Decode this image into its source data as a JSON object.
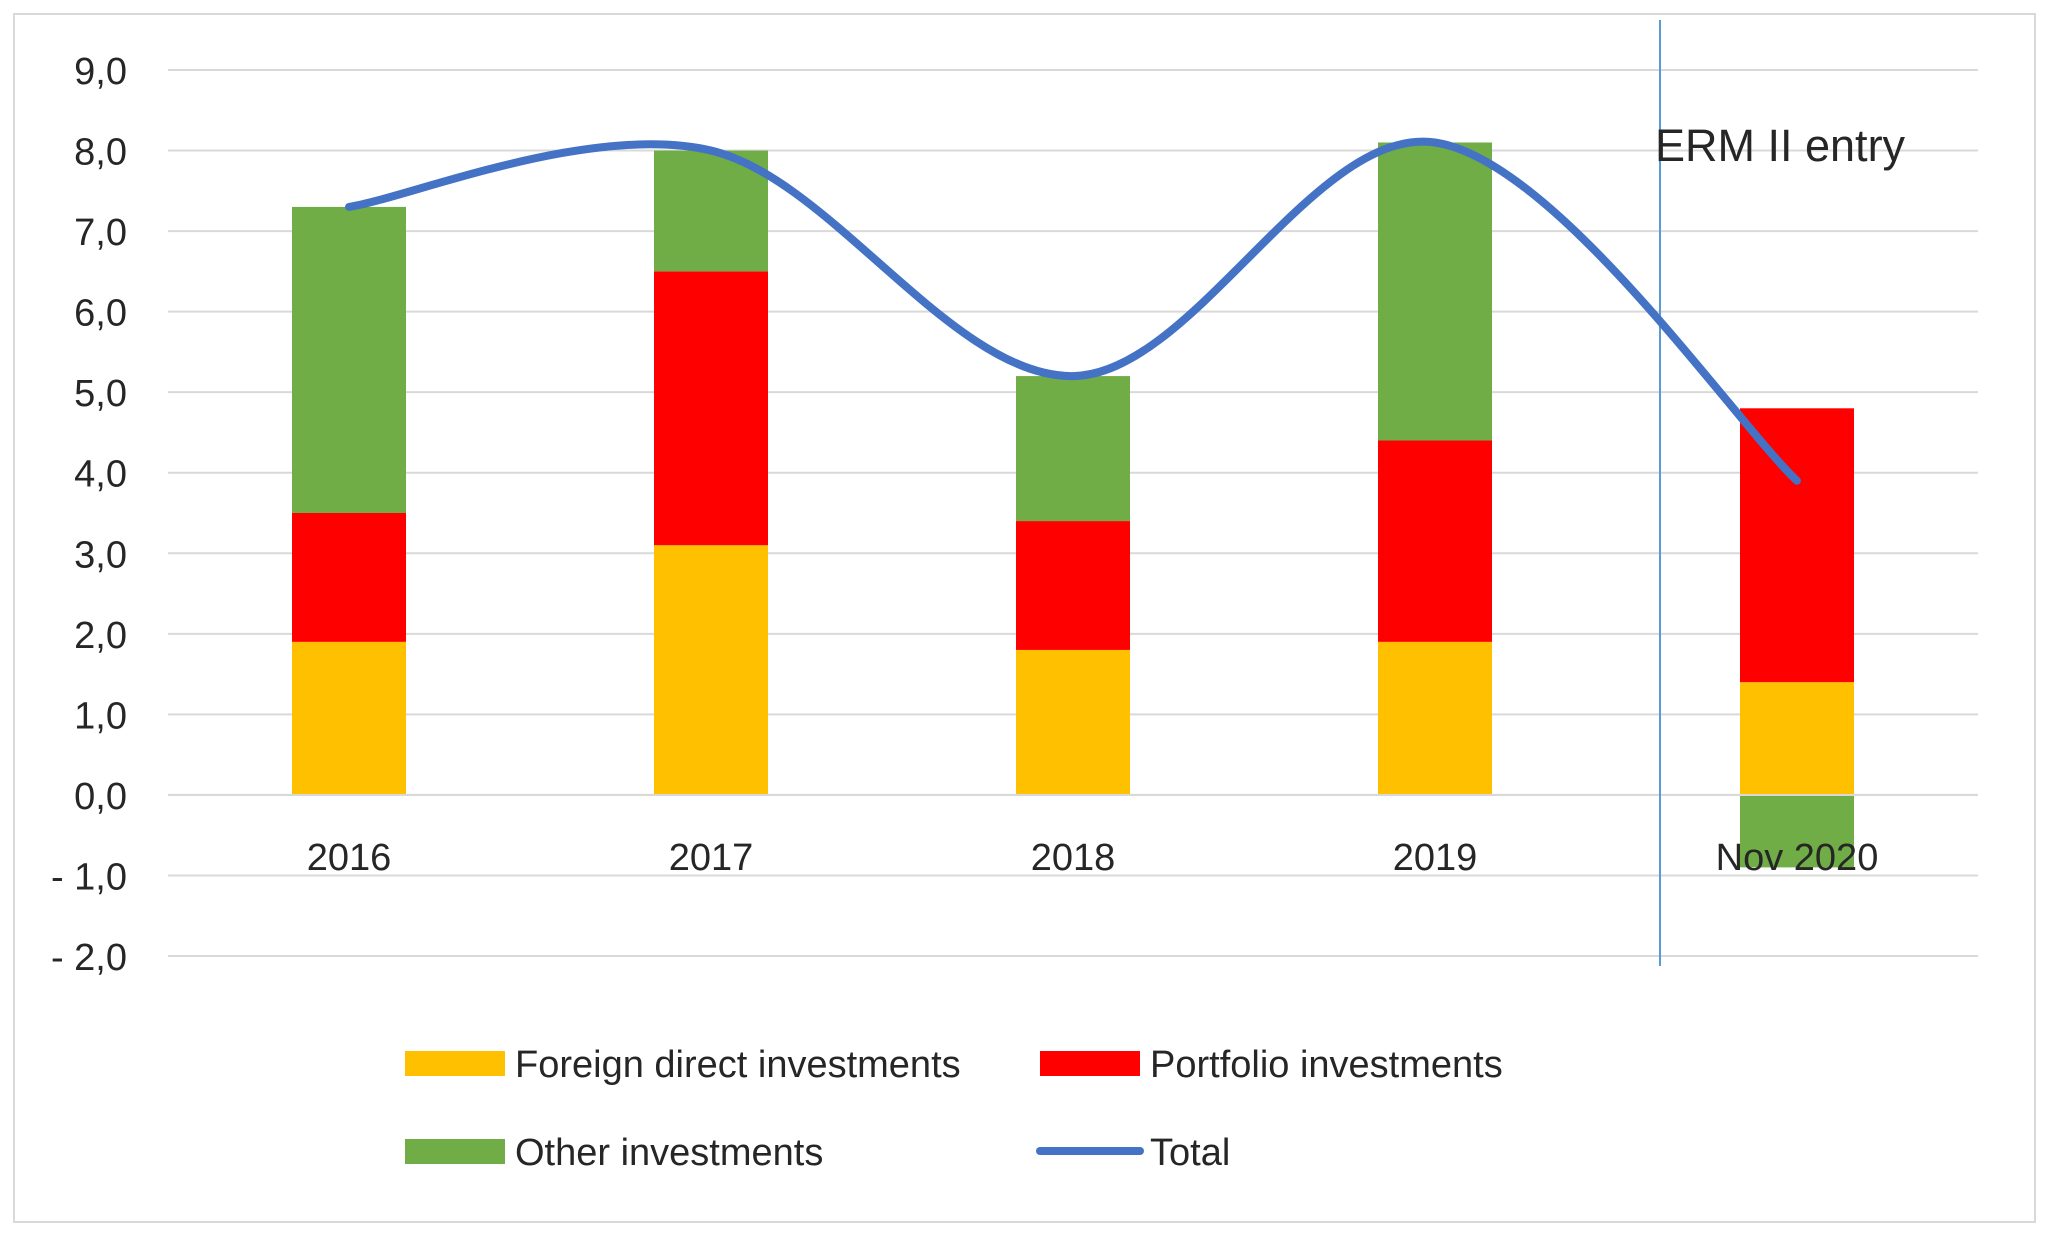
{
  "chart_data": {
    "type": "bar",
    "stacked": true,
    "categories": [
      "2016",
      "2017",
      "2018",
      "2019",
      "Nov 2020"
    ],
    "series": [
      {
        "name": "Foreign direct investments",
        "type": "bar",
        "color": "#FFC000",
        "values": [
          1.9,
          3.1,
          1.8,
          1.9,
          1.4
        ]
      },
      {
        "name": "Portfolio investments",
        "type": "bar",
        "color": "#FF0000",
        "values": [
          1.6,
          3.4,
          1.6,
          2.5,
          3.4
        ]
      },
      {
        "name": "Other investments",
        "type": "bar",
        "color": "#70AD47",
        "values": [
          3.8,
          1.5,
          1.8,
          3.7,
          -0.9
        ]
      },
      {
        "name": "Total",
        "type": "line",
        "smooth": true,
        "color": "#4472C4",
        "values": [
          7.3,
          8.0,
          5.2,
          8.1,
          3.9
        ]
      }
    ],
    "y_ticks": [
      "9,0",
      "8,0",
      "7,0",
      "6,0",
      "5,0",
      "4,0",
      "3,0",
      "2,0",
      "1,0",
      "0,0",
      "- 1,0",
      "- 2,0"
    ],
    "ylim": [
      -2,
      9
    ],
    "grid": true,
    "legend_position": "bottom",
    "annotation": {
      "text": "ERM II entry",
      "marker": "vertical line between 2019 and Nov 2020"
    }
  }
}
